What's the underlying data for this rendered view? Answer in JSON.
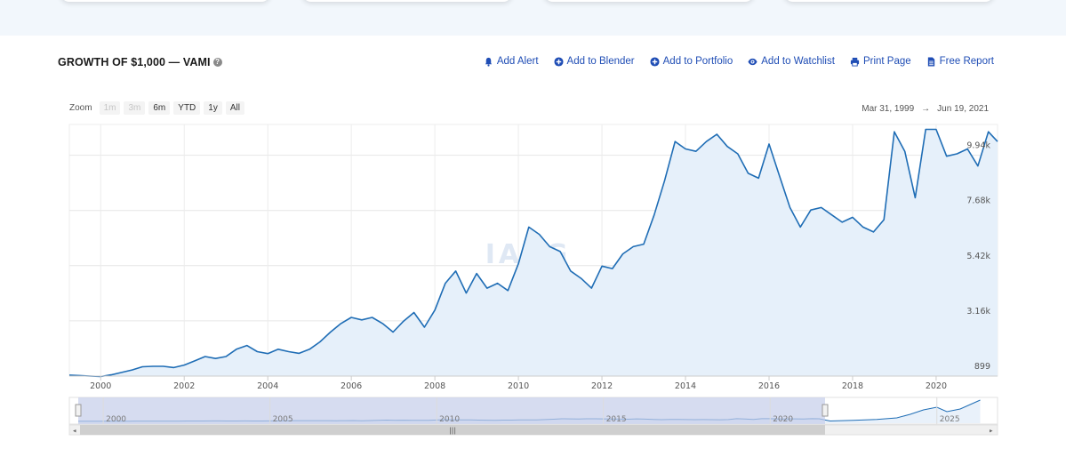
{
  "header": {
    "title": "GROWTH OF $1,000 — VAMI",
    "help_icon": "question-circle-icon"
  },
  "actions": [
    {
      "label": "Add Alert",
      "icon": "bell-icon"
    },
    {
      "label": "Add to Blender",
      "icon": "plus-circle-icon"
    },
    {
      "label": "Add to Portfolio",
      "icon": "plus-circle-icon"
    },
    {
      "label": "Add to Watchlist",
      "icon": "eye-icon"
    },
    {
      "label": "Print Page",
      "icon": "printer-icon"
    },
    {
      "label": "Free Report",
      "icon": "file-icon"
    }
  ],
  "zoom": {
    "label": "Zoom",
    "buttons": [
      {
        "label": "1m",
        "enabled": false
      },
      {
        "label": "3m",
        "enabled": false
      },
      {
        "label": "6m",
        "enabled": true
      },
      {
        "label": "YTD",
        "enabled": true
      },
      {
        "label": "1y",
        "enabled": true
      },
      {
        "label": "All",
        "enabled": true
      }
    ]
  },
  "range": {
    "from": "Mar 31, 1999",
    "separator": "→",
    "to": "Jun 19, 2021"
  },
  "watermark": "IASG",
  "colors": {
    "line": "#1f6db5",
    "fill": "#e6f0fa",
    "link": "#1f4db5",
    "navigator_mask": "#c5cdea"
  },
  "chart_data": {
    "type": "area",
    "title": "GROWTH OF $1,000 — VAMI",
    "xlabel": "",
    "ylabel": "",
    "xlim": [
      1999.25,
      2021.47
    ],
    "ylim": [
      899,
      11200
    ],
    "x_ticks": [
      "2000",
      "2002",
      "2004",
      "2006",
      "2008",
      "2010",
      "2012",
      "2014",
      "2016",
      "2018",
      "2020"
    ],
    "y_ticks": [
      {
        "value": 899,
        "label": "899"
      },
      {
        "value": 3160,
        "label": "3.16k"
      },
      {
        "value": 5420,
        "label": "5.42k"
      },
      {
        "value": 7680,
        "label": "7.68k"
      },
      {
        "value": 9940,
        "label": "9.94k"
      }
    ],
    "grid": true,
    "legend": "none",
    "series": [
      {
        "x": [
          1999.25,
          1999.5,
          1999.75,
          2000.0,
          2000.25,
          2000.5,
          2000.75,
          2001.0,
          2001.25,
          2001.5,
          2001.75,
          2002.0,
          2002.25,
          2002.5,
          2002.75,
          2003.0,
          2003.25,
          2003.5,
          2003.75,
          2004.0,
          2004.25,
          2004.5,
          2004.75,
          2005.0,
          2005.25,
          2005.5,
          2005.75,
          2006.0,
          2006.25,
          2006.5,
          2006.75,
          2007.0,
          2007.25,
          2007.5,
          2007.75,
          2008.0,
          2008.25,
          2008.5,
          2008.75,
          2009.0,
          2009.25,
          2009.5,
          2009.75,
          2010.0,
          2010.25,
          2010.5,
          2010.75,
          2011.0,
          2011.25,
          2011.5,
          2011.75,
          2012.0,
          2012.25,
          2012.5,
          2012.75,
          2013.0,
          2013.25,
          2013.5,
          2013.75,
          2014.0,
          2014.25,
          2014.5,
          2014.75,
          2015.0,
          2015.25,
          2015.5,
          2015.75,
          2016.0,
          2016.25,
          2016.5,
          2016.75,
          2017.0,
          2017.25,
          2017.5,
          2017.75,
          2018.0,
          2018.25,
          2018.5,
          2018.75,
          2019.0,
          2019.25,
          2019.5,
          2019.75,
          2020.0,
          2020.25,
          2020.5,
          2020.75,
          2021.0,
          2021.25,
          2021.47
        ],
        "values": [
          940,
          920,
          900,
          880,
          950,
          1050,
          1150,
          1280,
          1300,
          1300,
          1250,
          1350,
          1520,
          1700,
          1620,
          1700,
          2000,
          2150,
          1900,
          1820,
          2000,
          1900,
          1830,
          2000,
          2300,
          2700,
          3050,
          3300,
          3200,
          3300,
          3050,
          2700,
          3150,
          3500,
          2900,
          3600,
          4700,
          5200,
          4300,
          5100,
          4500,
          4700,
          4400,
          5500,
          7000,
          6700,
          6200,
          6000,
          5200,
          4900,
          4500,
          5400,
          5300,
          5900,
          6200,
          6300,
          7500,
          8900,
          10500,
          10200,
          10100,
          10500,
          10800,
          10300,
          10000,
          9200,
          9000,
          10400,
          9100,
          7800,
          7000,
          7700,
          7800,
          7500,
          7200,
          7400,
          7000,
          6800,
          7300,
          10900,
          10100,
          8200,
          11000,
          11000,
          9900,
          10000,
          10200,
          9500,
          10900,
          10500
        ],
        "line_only": true
      }
    ]
  }
}
